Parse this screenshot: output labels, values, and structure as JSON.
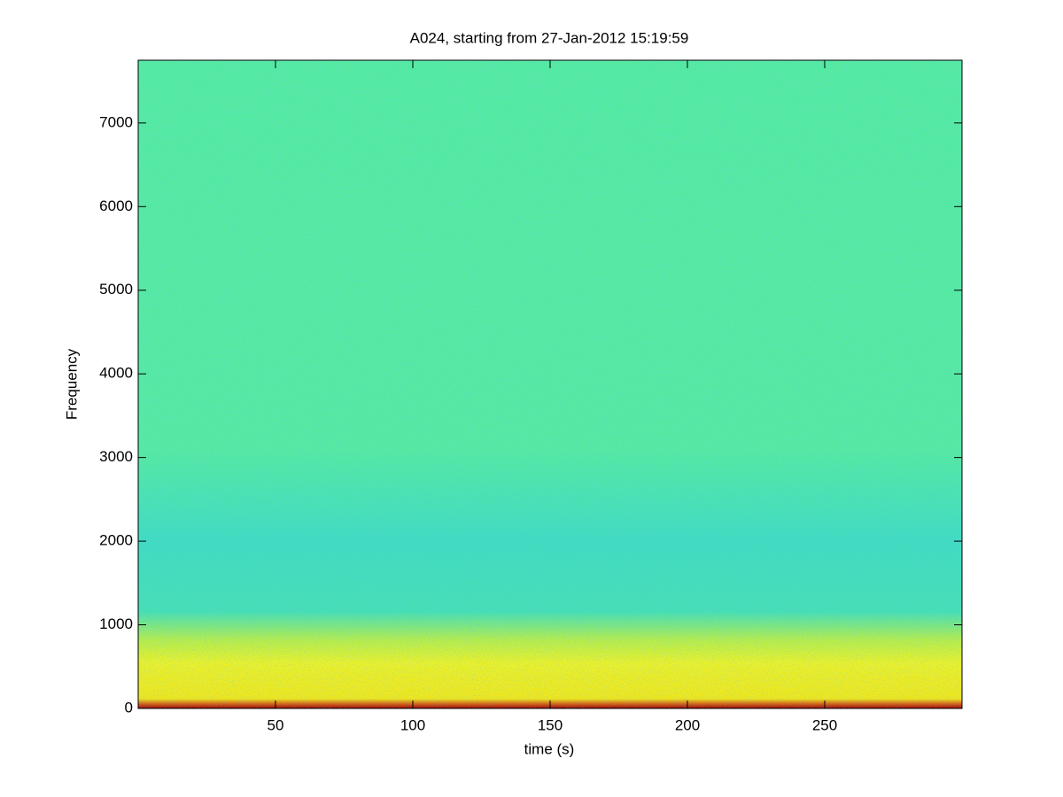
{
  "chart_data": {
    "type": "spectrogram",
    "title": "A024, starting from 27-Jan-2012 15:19:59",
    "x_label": "time (s)",
    "y_label": "Frequency",
    "xlim": [
      0,
      300
    ],
    "ylim": [
      0,
      7750
    ],
    "xticks": [
      50,
      100,
      150,
      200,
      250
    ],
    "yticks": [
      0,
      1000,
      2000,
      3000,
      4000,
      5000,
      6000,
      7000
    ]
  }
}
